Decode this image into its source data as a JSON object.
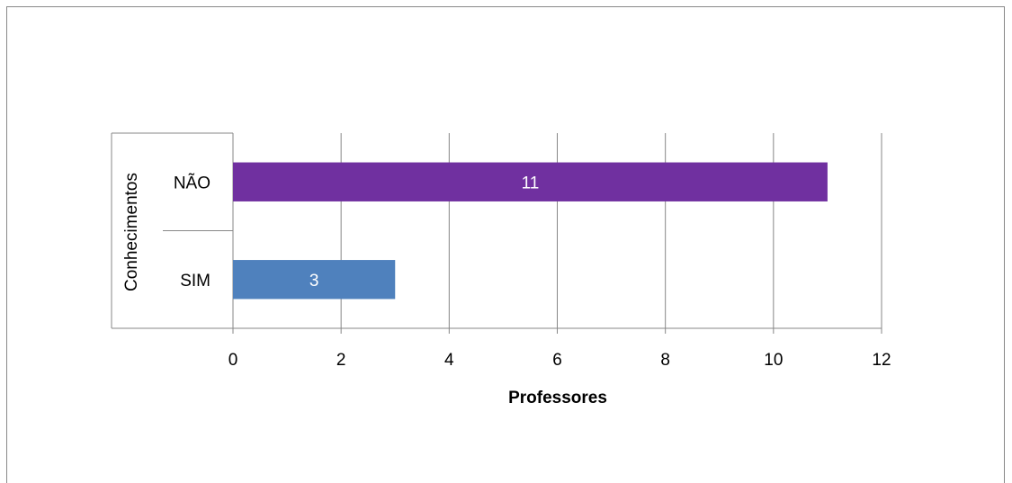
{
  "chart_data": {
    "type": "bar",
    "orientation": "horizontal",
    "categories": [
      "NÃO",
      "SIM"
    ],
    "values": [
      11,
      3
    ],
    "bar_colors": [
      "#7030a0",
      "#4f81bd"
    ],
    "data_labels": [
      "11",
      "3"
    ],
    "xlabel": "Professores",
    "ylabel": "Conhecimentos",
    "xlim": [
      0,
      12
    ],
    "xticks": [
      0,
      2,
      4,
      6,
      8,
      10,
      12
    ],
    "grid": "vertical",
    "legend": "none"
  },
  "colors": {
    "grid": "#878787",
    "text": "#000000",
    "label_inside": "#ffffff"
  }
}
